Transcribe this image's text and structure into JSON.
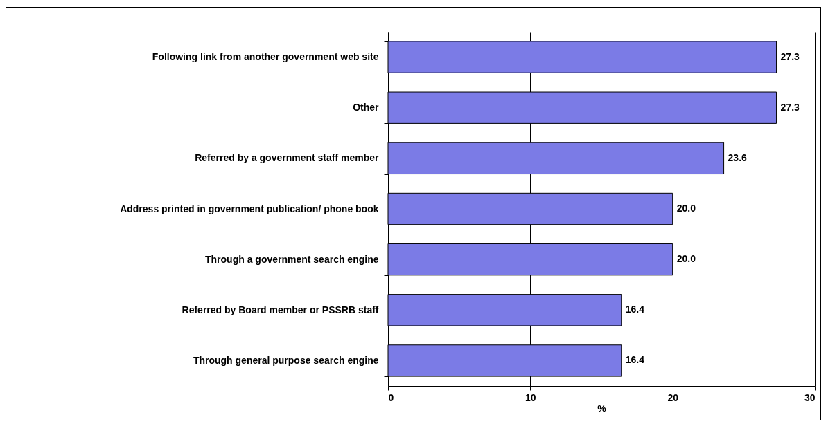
{
  "chart_data": {
    "type": "bar",
    "orientation": "horizontal",
    "xlabel": "%",
    "categories": [
      "Following link from another government web site",
      "Other",
      "Referred by a government staff member",
      "Address printed in government publication/ phone book",
      "Through a government search engine",
      "Referred by Board member or PSSRB staff",
      "Through general purpose search engine"
    ],
    "values": [
      27.3,
      27.3,
      23.6,
      20.0,
      20.0,
      16.4,
      16.4
    ],
    "value_labels": [
      "27.3",
      "27.3",
      "23.6",
      "20.0",
      "20.0",
      "16.4",
      "16.4"
    ],
    "color": "#7b7be6",
    "xlim": [
      0,
      30
    ],
    "xticks": [
      0,
      10,
      20,
      30
    ],
    "grid": "x"
  }
}
